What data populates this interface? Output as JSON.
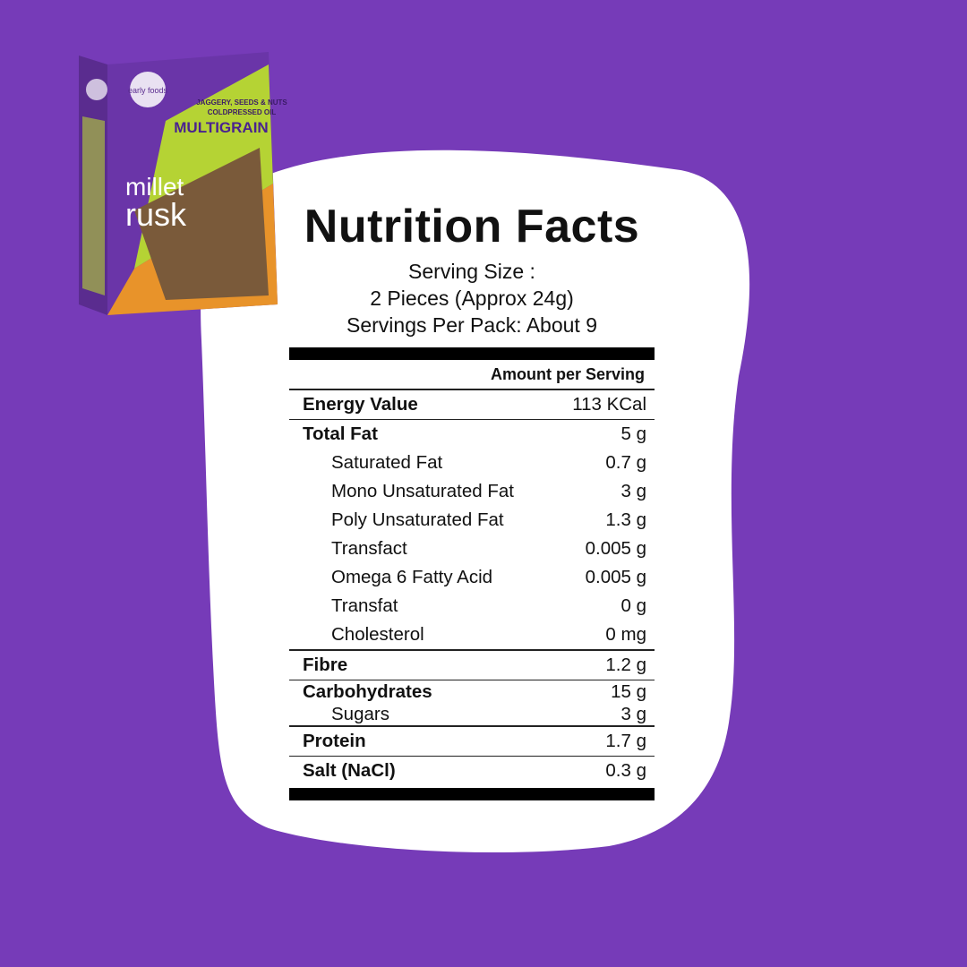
{
  "package": {
    "brand": "early foods",
    "tagline_1": "JAGGERY, SEEDS & NUTS",
    "tagline_2": "COLDPRESSED OIL",
    "variant": "MULTIGRAIN",
    "product_1": "millet",
    "product_2": "rusk"
  },
  "label": {
    "title": "Nutrition Facts",
    "serving": [
      "Serving Size :",
      "2 Pieces (Approx 24g)",
      "Servings Per Pack: About 9"
    ],
    "amount_header": "Amount per Serving",
    "groups": [
      [
        {
          "label": "Energy Value",
          "value": "113 KCal"
        }
      ],
      [
        {
          "label": "Total Fat",
          "value": "5 g"
        },
        {
          "label": "Saturated Fat",
          "value": "0.7 g"
        },
        {
          "label": "Mono Unsaturated Fat",
          "value": "3 g"
        },
        {
          "label": "Poly Unsaturated Fat",
          "value": "1.3 g"
        },
        {
          "label": "Transfact",
          "value": "0.005 g"
        },
        {
          "label": "Omega 6 Fatty Acid",
          "value": "0.005 g"
        },
        {
          "label": "Transfat",
          "value": "0 g"
        },
        {
          "label": "Cholesterol",
          "value": "0 mg"
        }
      ],
      [
        {
          "label": "Fibre",
          "value": "1.2 g"
        }
      ],
      [
        {
          "label": "Carbohydrates",
          "value": "15 g"
        },
        {
          "label": "Sugars",
          "value": "3 g"
        }
      ],
      [
        {
          "label": "Protein",
          "value": "1.7 g"
        }
      ],
      [
        {
          "label": "Salt (NaCl)",
          "value": "0.3 g"
        }
      ]
    ]
  }
}
